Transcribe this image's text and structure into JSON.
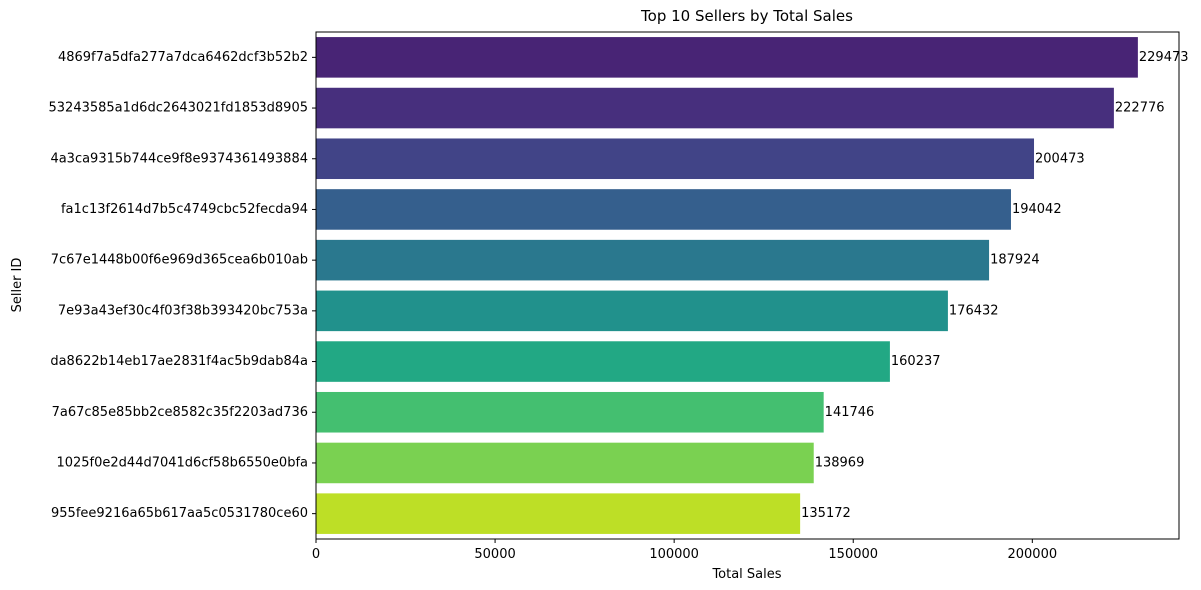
{
  "chart_data": {
    "type": "bar",
    "orientation": "horizontal",
    "title": "Top 10 Sellers by Total Sales",
    "xlabel": "Total Sales",
    "ylabel": "Seller ID",
    "xlim": [
      0,
      240954
    ],
    "xticks": [
      0,
      50000,
      100000,
      150000,
      200000
    ],
    "categories": [
      "4869f7a5dfa277a7dca6462dcf3b52b2",
      "53243585a1d6dc2643021fd1853d8905",
      "4a3ca9315b744ce9f8e9374361493884",
      "fa1c13f2614d7b5c4749cbc52fecda94",
      "7c67e1448b00f6e969d365cea6b010ab",
      "7e93a43ef30c4f03f38b393420bc753a",
      "da8622b14eb17ae2831f4ac5b9dab84a",
      "7a67c85e85bb2ce8582c35f2203ad736",
      "1025f0e2d44d7041d6cf58b6550e0bfa",
      "955fee9216a65b617aa5c0531780ce60"
    ],
    "values": [
      229473,
      222776,
      200473,
      194042,
      187924,
      176432,
      160237,
      141746,
      138969,
      135172
    ],
    "data_labels": [
      "229473",
      "222776",
      "200473",
      "194042",
      "187924",
      "176432",
      "160237",
      "141746",
      "138969",
      "135172"
    ],
    "colors": [
      "#482475",
      "#472f7d",
      "#414487",
      "#355f8d",
      "#2a788e",
      "#21918c",
      "#22a884",
      "#44bf70",
      "#7ad151",
      "#bddf26"
    ],
    "grid": false,
    "legend": "none"
  }
}
